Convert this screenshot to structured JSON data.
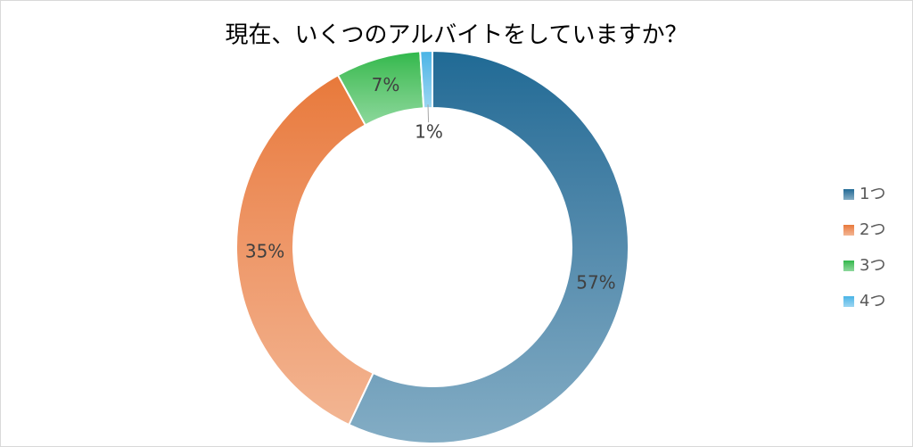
{
  "chart_data": {
    "type": "donut",
    "title": "現在、いくつのアルバイトをしていますか？",
    "categories": [
      "1つ",
      "2つ",
      "3つ",
      "4つ"
    ],
    "values": [
      57,
      35,
      7,
      1
    ],
    "value_labels": [
      "57%",
      "35%",
      "7%",
      "1%"
    ],
    "colors": [
      "#1f6a95",
      "#e8793a",
      "#2eb84b",
      "#48b4e6"
    ]
  }
}
